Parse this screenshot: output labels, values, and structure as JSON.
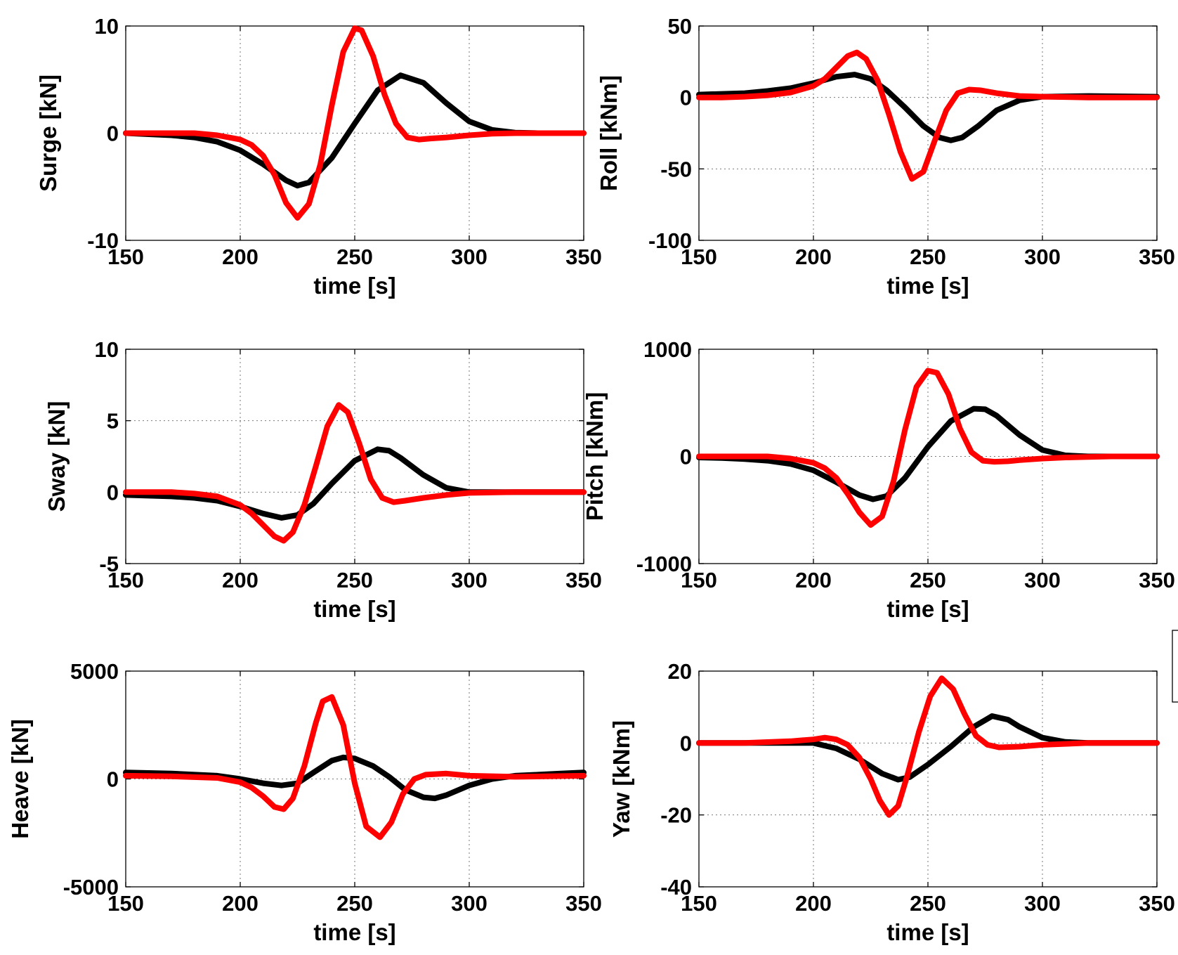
{
  "colors": {
    "series_black": "#000000",
    "series_red": "#ff0000",
    "background": "#ffffff",
    "grid": "#777777"
  },
  "chart_data": [
    {
      "type": "line",
      "xlabel": "time [s]",
      "ylabel": "Surge [kN]",
      "xlim": [
        150,
        350
      ],
      "ylim": [
        -10,
        10
      ],
      "xticks": [
        150,
        200,
        250,
        300,
        350
      ],
      "yticks": [
        -10,
        0,
        10
      ],
      "grid": true,
      "series": [
        {
          "color": "#000000",
          "x": [
            150,
            160,
            170,
            180,
            190,
            200,
            210,
            220,
            225,
            230,
            240,
            250,
            260,
            270,
            280,
            290,
            300,
            310,
            320,
            330,
            340,
            350
          ],
          "y": [
            0,
            -0.1,
            -0.2,
            -0.4,
            -0.8,
            -1.6,
            -2.9,
            -4.4,
            -4.9,
            -4.6,
            -2.3,
            0.9,
            4.0,
            5.4,
            4.7,
            2.8,
            1.1,
            0.3,
            0.05,
            0,
            0,
            0
          ]
        },
        {
          "color": "#ff0000",
          "x": [
            150,
            160,
            170,
            180,
            190,
            200,
            205,
            210,
            215,
            220,
            225,
            230,
            235,
            240,
            245,
            250,
            253,
            258,
            263,
            268,
            273,
            278,
            283,
            290,
            300,
            310,
            320,
            330,
            350
          ],
          "y": [
            0,
            0,
            0,
            0,
            -0.2,
            -0.6,
            -1.1,
            -2.1,
            -3.9,
            -6.5,
            -7.9,
            -6.6,
            -2.9,
            2.6,
            7.6,
            9.8,
            9.6,
            7.2,
            3.6,
            0.9,
            -0.4,
            -0.6,
            -0.5,
            -0.4,
            -0.2,
            -0.05,
            0,
            0,
            0
          ]
        }
      ]
    },
    {
      "type": "line",
      "xlabel": "time [s]",
      "ylabel": "Roll [kNm]",
      "xlim": [
        150,
        350
      ],
      "ylim": [
        -100,
        50
      ],
      "xticks": [
        150,
        200,
        250,
        300,
        350
      ],
      "yticks": [
        -100,
        -50,
        0,
        50
      ],
      "grid": true,
      "series": [
        {
          "color": "#000000",
          "x": [
            150,
            160,
            170,
            180,
            190,
            200,
            210,
            218,
            225,
            232,
            240,
            248,
            255,
            260,
            265,
            272,
            280,
            290,
            300,
            320,
            350
          ],
          "y": [
            2,
            2.5,
            3,
            4.5,
            6.5,
            10,
            14.5,
            16,
            13,
            5,
            -7,
            -20,
            -28,
            -30,
            -28,
            -20,
            -9,
            -2,
            0.5,
            1,
            0.5
          ]
        },
        {
          "color": "#ff0000",
          "x": [
            150,
            160,
            170,
            180,
            190,
            200,
            205,
            210,
            215,
            219,
            223,
            228,
            233,
            238,
            243,
            248,
            253,
            258,
            263,
            268,
            273,
            280,
            290,
            300,
            320,
            350
          ],
          "y": [
            0,
            0,
            0.5,
            1.5,
            3.5,
            8,
            13,
            21,
            29,
            31.5,
            27,
            12,
            -12,
            -38,
            -57,
            -52,
            -30,
            -9,
            3,
            5.5,
            5,
            3,
            1,
            0.5,
            0,
            0
          ]
        }
      ]
    },
    {
      "type": "line",
      "xlabel": "time [s]",
      "ylabel": "Sway [kN]",
      "xlim": [
        150,
        350
      ],
      "ylim": [
        -5,
        10
      ],
      "xticks": [
        150,
        200,
        250,
        300,
        350
      ],
      "yticks": [
        -5,
        0,
        5,
        10
      ],
      "grid": true,
      "series": [
        {
          "color": "#000000",
          "x": [
            150,
            160,
            170,
            180,
            190,
            200,
            210,
            218,
            225,
            232,
            240,
            250,
            260,
            265,
            270,
            280,
            290,
            300,
            320,
            350
          ],
          "y": [
            -0.2,
            -0.25,
            -0.3,
            -0.4,
            -0.6,
            -1.0,
            -1.5,
            -1.8,
            -1.6,
            -0.8,
            0.6,
            2.2,
            3.0,
            2.9,
            2.4,
            1.2,
            0.3,
            0,
            0,
            0
          ]
        },
        {
          "color": "#ff0000",
          "x": [
            150,
            160,
            170,
            180,
            190,
            200,
            205,
            210,
            215,
            219,
            223,
            228,
            233,
            238,
            243,
            247,
            252,
            257,
            262,
            267,
            272,
            280,
            290,
            300,
            320,
            350
          ],
          "y": [
            0,
            0,
            0,
            -0.1,
            -0.3,
            -0.9,
            -1.5,
            -2.3,
            -3.1,
            -3.4,
            -2.8,
            -0.9,
            1.8,
            4.6,
            6.1,
            5.6,
            3.4,
            0.9,
            -0.4,
            -0.7,
            -0.6,
            -0.4,
            -0.2,
            -0.05,
            0,
            0
          ]
        }
      ]
    },
    {
      "type": "line",
      "xlabel": "time [s]",
      "ylabel": "Pitch [kNm]",
      "xlim": [
        150,
        350
      ],
      "ylim": [
        -1000,
        1000
      ],
      "xticks": [
        150,
        200,
        250,
        300,
        350
      ],
      "yticks": [
        -1000,
        0,
        1000
      ],
      "grid": true,
      "series": [
        {
          "color": "#000000",
          "x": [
            150,
            160,
            170,
            180,
            190,
            200,
            210,
            220,
            226,
            232,
            240,
            250,
            260,
            270,
            275,
            280,
            290,
            300,
            310,
            320,
            330,
            350
          ],
          "y": [
            -10,
            -15,
            -25,
            -40,
            -70,
            -130,
            -240,
            -360,
            -400,
            -370,
            -200,
            90,
            330,
            445,
            440,
            380,
            200,
            60,
            10,
            0,
            0,
            0
          ]
        },
        {
          "color": "#ff0000",
          "x": [
            150,
            160,
            170,
            180,
            190,
            200,
            205,
            210,
            215,
            220,
            225,
            230,
            235,
            240,
            245,
            250,
            254,
            259,
            264,
            269,
            274,
            279,
            285,
            290,
            300,
            310,
            320,
            330,
            350
          ],
          "y": [
            0,
            0,
            0,
            0,
            -20,
            -60,
            -110,
            -200,
            -350,
            -520,
            -640,
            -560,
            -230,
            250,
            650,
            800,
            780,
            580,
            260,
            40,
            -40,
            -50,
            -45,
            -35,
            -20,
            -10,
            -5,
            0,
            0
          ]
        }
      ]
    },
    {
      "type": "line",
      "xlabel": "time [s]",
      "ylabel": "Heave [kN]",
      "xlim": [
        150,
        350
      ],
      "ylim": [
        -5000,
        5000
      ],
      "xticks": [
        150,
        200,
        250,
        300,
        350
      ],
      "yticks": [
        -5000,
        0,
        5000
      ],
      "grid": true,
      "series": [
        {
          "color": "#000000",
          "x": [
            150,
            170,
            190,
            200,
            210,
            218,
            225,
            232,
            240,
            245,
            250,
            258,
            265,
            272,
            280,
            285,
            290,
            300,
            310,
            320,
            330,
            340,
            350
          ],
          "y": [
            300,
            250,
            150,
            0,
            -200,
            -300,
            -200,
            300,
            850,
            1000,
            950,
            600,
            100,
            -500,
            -850,
            -900,
            -750,
            -300,
            0,
            150,
            200,
            250,
            300
          ]
        },
        {
          "color": "#ff0000",
          "x": [
            150,
            170,
            190,
            200,
            205,
            210,
            215,
            219,
            223,
            228,
            233,
            236,
            240,
            245,
            250,
            255,
            261,
            266,
            271,
            276,
            281,
            290,
            300,
            320,
            350
          ],
          "y": [
            150,
            120,
            50,
            -150,
            -400,
            -800,
            -1300,
            -1400,
            -900,
            600,
            2600,
            3600,
            3800,
            2500,
            -200,
            -2200,
            -2700,
            -2000,
            -700,
            0,
            200,
            250,
            150,
            100,
            150
          ]
        }
      ]
    },
    {
      "type": "line",
      "xlabel": "time [s]",
      "ylabel": "Yaw [kNm]",
      "xlim": [
        150,
        350
      ],
      "ylim": [
        -40,
        20
      ],
      "xticks": [
        150,
        200,
        250,
        300,
        350
      ],
      "yticks": [
        -40,
        -20,
        0,
        20
      ],
      "grid": true,
      "series": [
        {
          "color": "#000000",
          "x": [
            150,
            170,
            190,
            200,
            210,
            220,
            230,
            237,
            242,
            250,
            260,
            270,
            278,
            285,
            290,
            300,
            310,
            320,
            350
          ],
          "y": [
            0,
            0,
            0,
            0,
            -1.5,
            -4.5,
            -8.5,
            -10.2,
            -9.5,
            -6,
            -1,
            4.5,
            7.5,
            6.5,
            4.5,
            1.5,
            0.3,
            0,
            0
          ]
        },
        {
          "color": "#ff0000",
          "x": [
            150,
            170,
            190,
            200,
            205,
            210,
            215,
            220,
            225,
            229,
            233,
            237,
            241,
            246,
            251,
            256,
            261,
            266,
            271,
            276,
            281,
            290,
            300,
            320,
            350
          ],
          "y": [
            0,
            0,
            0.5,
            1,
            1.5,
            1,
            -0.5,
            -4,
            -10,
            -16,
            -20,
            -17.5,
            -9,
            3,
            13,
            18,
            15,
            8,
            2,
            -0.5,
            -1.2,
            -1,
            -0.5,
            0,
            0
          ]
        }
      ]
    }
  ]
}
